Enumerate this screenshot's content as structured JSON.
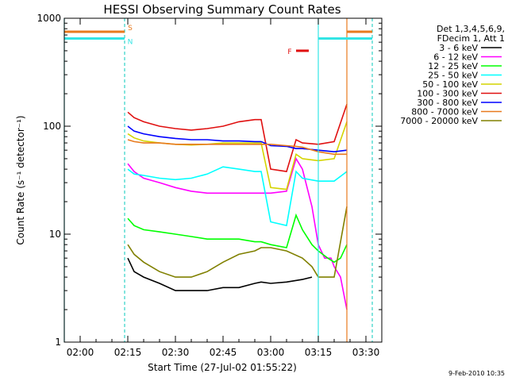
{
  "chart_data": {
    "type": "line",
    "title": "HESSI Observing Summary Count Rates",
    "xlabel": "Start Time (27-Jul-02 01:55:22)",
    "ylabel": "Count Rate (s⁻¹ detector⁻¹)",
    "y_scale": "log",
    "ylim": [
      1,
      1000
    ],
    "xlim": [
      "01:55",
      "03:35"
    ],
    "x_ticks": [
      "02:00",
      "02:15",
      "02:30",
      "02:45",
      "03:00",
      "03:15",
      "03:30"
    ],
    "y_ticks": [
      "1",
      "10",
      "100",
      "1000"
    ],
    "legend_header": [
      "Det 1,3,4,5,6,9,",
      "FDecim 1, Att 1"
    ],
    "legend_position": "right",
    "grid": false,
    "footer": "9-Feb-2010 10:35",
    "flags": [
      {
        "label": "S",
        "color": "#e87a1e",
        "value": 750,
        "segments": [
          [
            "01:55",
            "02:14"
          ],
          [
            "03:24",
            "03:32"
          ]
        ]
      },
      {
        "label": "N",
        "color": "#33e5e5",
        "value": 650,
        "segments": [
          [
            "01:55",
            "02:14"
          ],
          [
            "03:15",
            "03:32"
          ]
        ]
      },
      {
        "label": "F",
        "color": "#e01010",
        "value": 500,
        "segments": [
          [
            "03:08",
            "03:12"
          ]
        ]
      }
    ],
    "vertical_lines": [
      {
        "time": "01:55",
        "color": "#33e5e5",
        "style": "solid"
      },
      {
        "time": "02:14",
        "color": "#e87a1e",
        "style": "dashed"
      },
      {
        "time": "02:14",
        "color": "#33e5e5",
        "style": "dashed"
      },
      {
        "time": "03:15",
        "color": "#33e5e5",
        "style": "solid"
      },
      {
        "time": "03:24",
        "color": "#e87a1e",
        "style": "solid"
      },
      {
        "time": "03:32",
        "color": "#e87a1e",
        "style": "dashed"
      },
      {
        "time": "03:32",
        "color": "#33e5e5",
        "style": "dashed"
      }
    ],
    "series": [
      {
        "name": "3 - 6 keV",
        "color": "#000000",
        "x": [
          "02:15",
          "02:17",
          "02:20",
          "02:25",
          "02:30",
          "02:35",
          "02:40",
          "02:45",
          "02:50",
          "02:55",
          "02:57",
          "03:00",
          "03:05",
          "03:10",
          "03:13"
        ],
        "y": [
          6,
          4.5,
          4,
          3.5,
          3,
          3,
          3,
          3.2,
          3.2,
          3.5,
          3.6,
          3.5,
          3.6,
          3.8,
          4
        ]
      },
      {
        "name": "6 - 12 keV",
        "color": "#ff00ff",
        "x": [
          "02:15",
          "02:17",
          "02:20",
          "02:25",
          "02:30",
          "02:35",
          "02:40",
          "02:45",
          "02:50",
          "02:55",
          "02:57",
          "03:00",
          "03:05",
          "03:08",
          "03:10",
          "03:13",
          "03:15",
          "03:17",
          "03:19",
          "03:20",
          "03:22",
          "03:24"
        ],
        "y": [
          45,
          38,
          33,
          30,
          27,
          25,
          24,
          24,
          24,
          24,
          24,
          24,
          25,
          50,
          40,
          18,
          8,
          6,
          6,
          5,
          4,
          2
        ]
      },
      {
        "name": "12 - 25 keV",
        "color": "#00ff00",
        "x": [
          "02:15",
          "02:17",
          "02:20",
          "02:25",
          "02:30",
          "02:35",
          "02:40",
          "02:45",
          "02:50",
          "02:55",
          "02:57",
          "03:00",
          "03:05",
          "03:08",
          "03:10",
          "03:13",
          "03:15",
          "03:18",
          "03:20",
          "03:22",
          "03:24"
        ],
        "y": [
          14,
          12,
          11,
          10.5,
          10,
          9.5,
          9,
          9,
          9,
          8.5,
          8.5,
          8,
          7.5,
          15,
          11,
          8,
          7,
          6,
          5.5,
          6,
          8
        ]
      },
      {
        "name": "25 - 50 keV",
        "color": "#00ffff",
        "x": [
          "02:15",
          "02:17",
          "02:20",
          "02:25",
          "02:30",
          "02:35",
          "02:40",
          "02:45",
          "02:50",
          "02:55",
          "02:57",
          "03:00",
          "03:05",
          "03:08",
          "03:10",
          "03:15",
          "03:20",
          "03:24"
        ],
        "y": [
          40,
          36,
          35,
          33,
          32,
          33,
          36,
          42,
          40,
          38,
          38,
          13,
          12,
          38,
          33,
          31,
          31,
          38
        ]
      },
      {
        "name": "50 - 100 keV",
        "color": "#d4d400",
        "x": [
          "02:15",
          "02:17",
          "02:20",
          "02:25",
          "02:30",
          "02:35",
          "02:40",
          "02:45",
          "02:50",
          "02:55",
          "02:57",
          "03:00",
          "03:05",
          "03:08",
          "03:10",
          "03:15",
          "03:20",
          "03:24"
        ],
        "y": [
          85,
          78,
          73,
          70,
          68,
          67,
          68,
          70,
          70,
          70,
          70,
          27,
          26,
          55,
          50,
          48,
          50,
          110
        ]
      },
      {
        "name": "100 - 300 keV",
        "color": "#e01010",
        "x": [
          "02:15",
          "02:17",
          "02:20",
          "02:25",
          "02:30",
          "02:35",
          "02:40",
          "02:45",
          "02:50",
          "02:55",
          "02:57",
          "03:00",
          "03:05",
          "03:08",
          "03:10",
          "03:15",
          "03:20",
          "03:24"
        ],
        "y": [
          135,
          120,
          110,
          100,
          95,
          92,
          95,
          100,
          110,
          115,
          115,
          40,
          38,
          75,
          70,
          68,
          72,
          160
        ]
      },
      {
        "name": "300 - 800 keV",
        "color": "#0000ff",
        "x": [
          "02:15",
          "02:17",
          "02:20",
          "02:25",
          "02:30",
          "02:35",
          "02:40",
          "02:45",
          "02:50",
          "02:55",
          "02:57",
          "03:00",
          "03:05",
          "03:08",
          "03:10",
          "03:15",
          "03:20",
          "03:24"
        ],
        "y": [
          100,
          90,
          85,
          80,
          77,
          75,
          75,
          73,
          73,
          72,
          72,
          66,
          65,
          62,
          62,
          60,
          58,
          60
        ]
      },
      {
        "name": "800 - 7000 keV",
        "color": "#e87a1e",
        "x": [
          "02:15",
          "02:17",
          "02:20",
          "02:25",
          "02:30",
          "02:35",
          "02:40",
          "02:45",
          "02:50",
          "02:55",
          "02:57",
          "03:00",
          "03:05",
          "03:08",
          "03:10",
          "03:15",
          "03:20",
          "03:24"
        ],
        "y": [
          75,
          72,
          70,
          70,
          68,
          68,
          68,
          68,
          68,
          68,
          68,
          68,
          66,
          65,
          64,
          58,
          55,
          55
        ]
      },
      {
        "name": "7000 - 20000 keV",
        "color": "#808000",
        "x": [
          "02:15",
          "02:17",
          "02:20",
          "02:25",
          "02:30",
          "02:35",
          "02:40",
          "02:45",
          "02:50",
          "02:55",
          "02:57",
          "03:00",
          "03:05",
          "03:10",
          "03:13",
          "03:15",
          "03:20",
          "03:24"
        ],
        "y": [
          8,
          6.5,
          5.5,
          4.5,
          4,
          4,
          4.5,
          5.5,
          6.5,
          7,
          7.5,
          7.5,
          7,
          6,
          5,
          4,
          4,
          18
        ]
      }
    ]
  }
}
